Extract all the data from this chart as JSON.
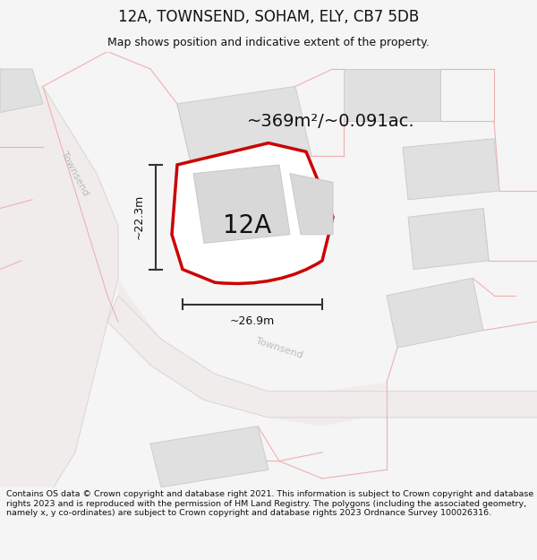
{
  "title": "12A, TOWNSEND, SOHAM, ELY, CB7 5DB",
  "subtitle": "Map shows position and indicative extent of the property.",
  "footer": "Contains OS data © Crown copyright and database right 2021. This information is subject to Crown copyright and database rights 2023 and is reproduced with the permission of HM Land Registry. The polygons (including the associated geometry, namely x, y co-ordinates) are subject to Crown copyright and database rights 2023 Ordnance Survey 100026316.",
  "area_label": "~369m²/~0.091ac.",
  "plot_label": "12A",
  "dim_height": "~22.3m",
  "dim_width": "~26.9m",
  "bg_color": "#f5f5f5",
  "map_bg": "#ffffff",
  "road_fill": "#f0ecec",
  "road_line": "#e0d0d0",
  "building_fill": "#e0e0e0",
  "building_edge": "#cccccc",
  "plot_fill": "#ffffff",
  "plot_edge": "#cc0000",
  "boundary_color": "#f0b0b0",
  "dim_color": "#333333",
  "text_color": "#111111",
  "road_text_color": "#bbbbbb",
  "title_fontsize": 12,
  "subtitle_fontsize": 9,
  "area_fontsize": 14,
  "plot_fontsize": 20,
  "dim_fontsize": 9,
  "road_fontsize": 8,
  "footer_fontsize": 6.8
}
